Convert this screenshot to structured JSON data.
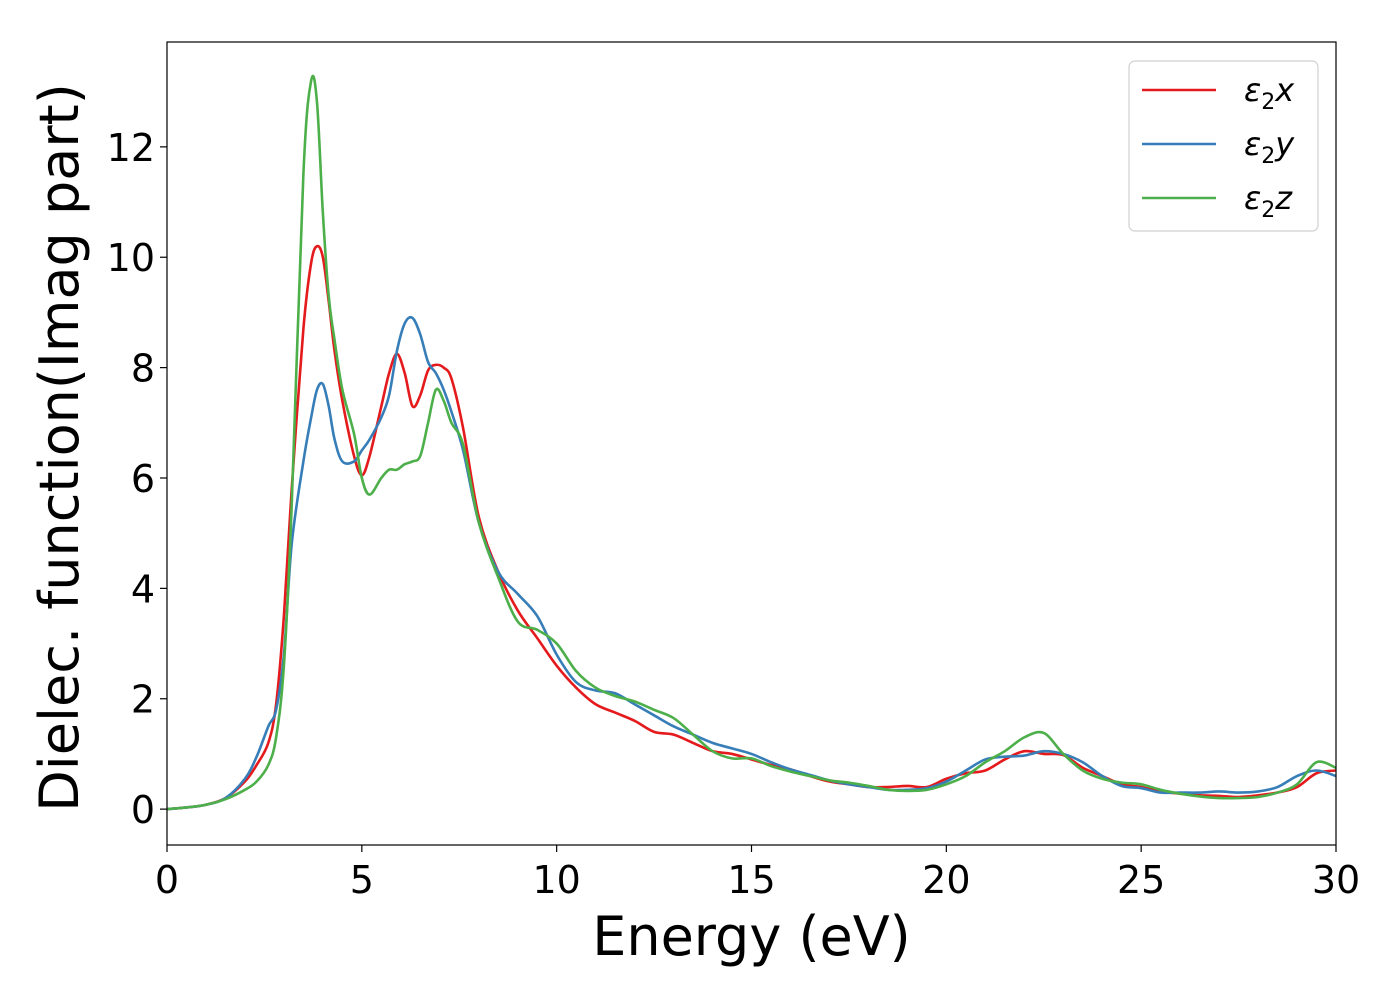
{
  "chart_data": {
    "type": "line",
    "title": "",
    "xlabel": "Energy (eV)",
    "ylabel": "Dielec. function(Imag part)",
    "xlim": [
      0,
      30
    ],
    "ylim": [
      -0.65,
      13.9
    ],
    "xticks": [
      0,
      5,
      10,
      15,
      20,
      25,
      30
    ],
    "yticks": [
      0,
      2,
      4,
      6,
      8,
      10,
      12
    ],
    "grid": false,
    "legend_position": "top-right",
    "series": [
      {
        "name": "ε2x",
        "legend": {
          "base": "ε",
          "sub": "2",
          "var": "x"
        },
        "color": "#e41a1c",
        "x": [
          0,
          0.5,
          1,
          1.5,
          2,
          2.3,
          2.6,
          2.8,
          3,
          3.2,
          3.5,
          3.7,
          3.85,
          4,
          4.15,
          4.3,
          4.5,
          4.8,
          5,
          5.2,
          5.5,
          5.7,
          5.9,
          6.1,
          6.3,
          6.5,
          6.7,
          6.9,
          7.1,
          7.3,
          7.6,
          8,
          8.5,
          9,
          9.5,
          10,
          10.5,
          11,
          11.5,
          12,
          12.5,
          13,
          13.5,
          14,
          14.5,
          15,
          15.5,
          16,
          16.5,
          17,
          17.5,
          18,
          18.5,
          19,
          19.5,
          20,
          20.5,
          21,
          21.5,
          22,
          22.5,
          23,
          23.5,
          24,
          24.5,
          25,
          25.5,
          26,
          26.5,
          27,
          27.5,
          28,
          28.5,
          29,
          29.5,
          30
        ],
        "y": [
          0,
          0.03,
          0.08,
          0.2,
          0.5,
          0.8,
          1.2,
          1.9,
          3.5,
          5.8,
          8.7,
          9.9,
          10.2,
          10.0,
          9.2,
          8.3,
          7.4,
          6.4,
          6.05,
          6.4,
          7.3,
          7.9,
          8.25,
          7.9,
          7.3,
          7.5,
          7.95,
          8.05,
          8.0,
          7.8,
          6.9,
          5.3,
          4.3,
          3.6,
          3.1,
          2.6,
          2.2,
          1.9,
          1.75,
          1.6,
          1.4,
          1.35,
          1.2,
          1.05,
          1.0,
          0.9,
          0.8,
          0.72,
          0.6,
          0.5,
          0.45,
          0.4,
          0.4,
          0.42,
          0.4,
          0.55,
          0.65,
          0.7,
          0.9,
          1.05,
          1.0,
          0.98,
          0.75,
          0.6,
          0.45,
          0.4,
          0.32,
          0.28,
          0.25,
          0.24,
          0.22,
          0.25,
          0.3,
          0.4,
          0.65,
          0.7
        ]
      },
      {
        "name": "ε2y",
        "legend": {
          "base": "ε",
          "sub": "2",
          "var": "y"
        },
        "color": "#377eb8",
        "x": [
          0,
          0.5,
          1,
          1.5,
          2,
          2.3,
          2.6,
          2.8,
          3,
          3.2,
          3.5,
          3.7,
          3.85,
          4,
          4.15,
          4.3,
          4.5,
          4.8,
          5,
          5.2,
          5.5,
          5.7,
          5.9,
          6.1,
          6.3,
          6.5,
          6.7,
          6.9,
          7.1,
          7.3,
          7.6,
          8,
          8.5,
          9,
          9.5,
          10,
          10.5,
          11,
          11.5,
          12,
          12.5,
          13,
          13.5,
          14,
          14.5,
          15,
          15.5,
          16,
          16.5,
          17,
          17.5,
          18,
          18.5,
          19,
          19.5,
          20,
          20.5,
          21,
          21.5,
          22,
          22.5,
          23,
          23.5,
          24,
          24.5,
          25,
          25.5,
          26,
          26.5,
          27,
          27.5,
          28,
          28.5,
          29,
          29.5,
          30
        ],
        "y": [
          0,
          0.03,
          0.08,
          0.2,
          0.55,
          0.95,
          1.5,
          1.8,
          2.8,
          4.8,
          6.3,
          7.1,
          7.6,
          7.7,
          7.3,
          6.7,
          6.3,
          6.3,
          6.5,
          6.7,
          7.1,
          7.5,
          8.3,
          8.8,
          8.9,
          8.6,
          8.1,
          7.9,
          7.6,
          7.2,
          6.5,
          5.2,
          4.3,
          3.9,
          3.5,
          2.8,
          2.3,
          2.15,
          2.1,
          1.9,
          1.7,
          1.5,
          1.35,
          1.2,
          1.1,
          1.0,
          0.85,
          0.72,
          0.62,
          0.52,
          0.45,
          0.4,
          0.35,
          0.35,
          0.38,
          0.5,
          0.7,
          0.9,
          0.95,
          0.97,
          1.05,
          1.0,
          0.85,
          0.6,
          0.42,
          0.38,
          0.3,
          0.3,
          0.3,
          0.32,
          0.3,
          0.32,
          0.4,
          0.6,
          0.7,
          0.6
        ]
      },
      {
        "name": "ε2z",
        "legend": {
          "base": "ε",
          "sub": "2",
          "var": "z"
        },
        "color": "#4daf4a",
        "x": [
          0,
          0.5,
          1,
          1.5,
          2,
          2.3,
          2.6,
          2.8,
          3,
          3.2,
          3.5,
          3.7,
          3.85,
          4,
          4.15,
          4.3,
          4.5,
          4.8,
          5,
          5.2,
          5.5,
          5.7,
          5.9,
          6.1,
          6.3,
          6.5,
          6.7,
          6.9,
          7.1,
          7.3,
          7.6,
          8,
          8.5,
          9,
          9.5,
          10,
          10.5,
          11,
          11.5,
          12,
          12.5,
          13,
          13.5,
          14,
          14.5,
          15,
          15.5,
          16,
          16.5,
          17,
          17.5,
          18,
          18.5,
          19,
          19.5,
          20,
          20.5,
          21,
          21.5,
          22,
          22.5,
          23,
          23.5,
          24,
          24.5,
          25,
          25.5,
          26,
          26.5,
          27,
          27.5,
          28,
          28.5,
          29,
          29.5,
          30
        ],
        "y": [
          0,
          0.03,
          0.08,
          0.18,
          0.35,
          0.5,
          0.8,
          1.3,
          2.6,
          5.5,
          11.5,
          13.2,
          12.8,
          10.8,
          9.3,
          8.5,
          7.6,
          6.8,
          6.0,
          5.7,
          6.0,
          6.15,
          6.15,
          6.25,
          6.3,
          6.4,
          7.0,
          7.6,
          7.4,
          7.0,
          6.6,
          5.2,
          4.2,
          3.4,
          3.25,
          3.0,
          2.5,
          2.2,
          2.05,
          1.95,
          1.8,
          1.65,
          1.35,
          1.05,
          0.92,
          0.92,
          0.78,
          0.68,
          0.6,
          0.52,
          0.48,
          0.42,
          0.35,
          0.33,
          0.35,
          0.45,
          0.6,
          0.85,
          1.05,
          1.3,
          1.38,
          1.0,
          0.7,
          0.55,
          0.48,
          0.45,
          0.35,
          0.28,
          0.23,
          0.2,
          0.2,
          0.22,
          0.3,
          0.45,
          0.85,
          0.75
        ]
      }
    ]
  }
}
